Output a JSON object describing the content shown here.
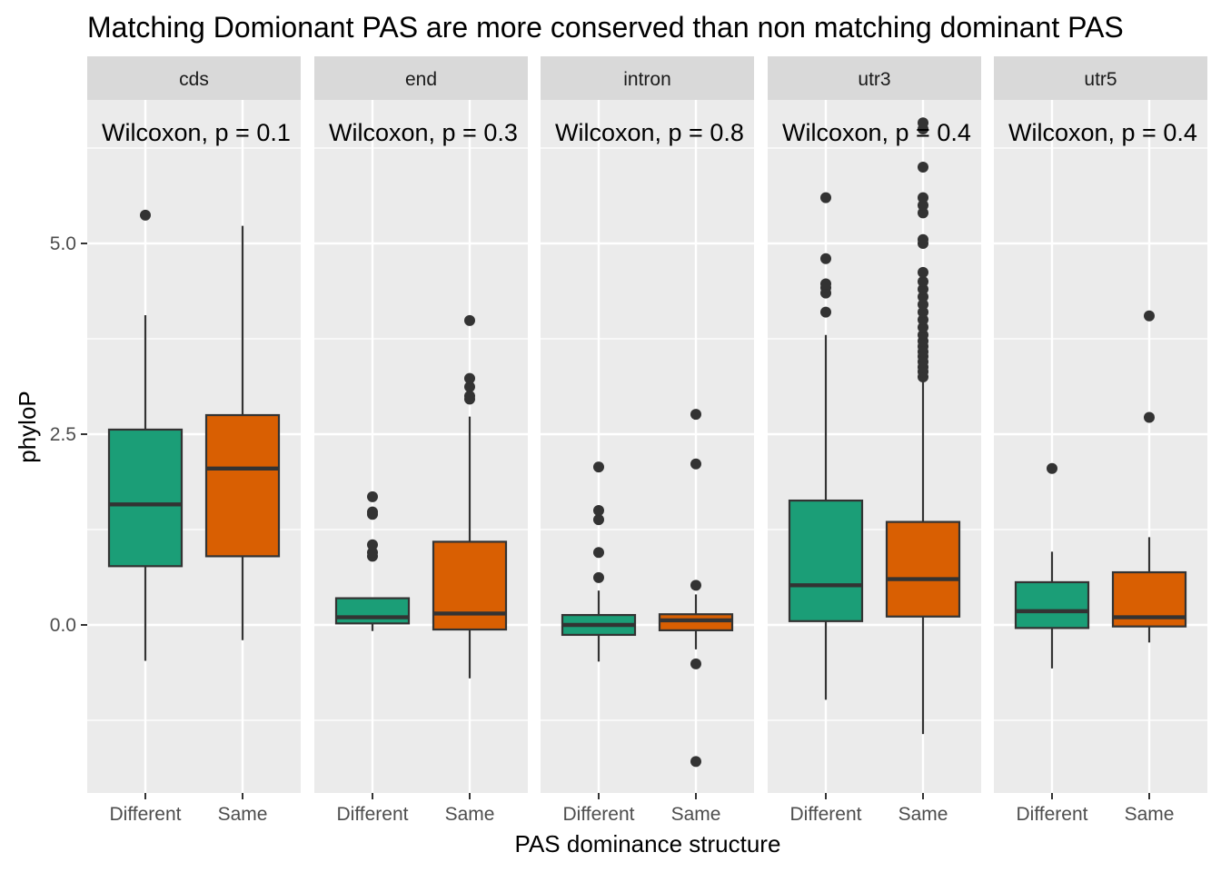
{
  "chart_data": {
    "type": "box",
    "title": "Matching Domionant PAS are more conserved than non matching dominant PAS",
    "xlabel": "PAS dominance structure",
    "ylabel": "phyloP",
    "y_ticks": [
      {
        "value": 0,
        "label": "0.0"
      },
      {
        "value": 2.5,
        "label": "2.5"
      },
      {
        "value": 5,
        "label": "5.0"
      }
    ],
    "ylim": [
      -2.2,
      6.75
    ],
    "grid": true,
    "legend": "none",
    "categories": [
      "Different",
      "Same"
    ],
    "colors": {
      "Different": "#1b9e77",
      "Same": "#d95f02"
    },
    "panels": [
      {
        "name": "cds",
        "annotation": "Wilcoxon, p = 0.1",
        "boxes": [
          {
            "group": "Different",
            "lower_whisker": -0.47,
            "q1": 0.77,
            "median": 1.58,
            "q3": 2.56,
            "upper_whisker": 4.06,
            "outliers": [
              5.37
            ]
          },
          {
            "group": "Same",
            "lower_whisker": -0.2,
            "q1": 0.9,
            "median": 2.05,
            "q3": 2.75,
            "upper_whisker": 5.23,
            "outliers": []
          }
        ]
      },
      {
        "name": "end",
        "annotation": "Wilcoxon, p = 0.3",
        "boxes": [
          {
            "group": "Different",
            "lower_whisker": -0.08,
            "q1": 0.02,
            "median": 0.1,
            "q3": 0.35,
            "upper_whisker": 0.35,
            "outliers": [
              0.9,
              0.95,
              1.05,
              1.45,
              1.48,
              1.68
            ]
          },
          {
            "group": "Same",
            "lower_whisker": -0.7,
            "q1": -0.06,
            "median": 0.15,
            "q3": 1.09,
            "upper_whisker": 2.73,
            "outliers": [
              2.96,
              3.0,
              3.12,
              3.23,
              3.99
            ]
          }
        ]
      },
      {
        "name": "intron",
        "annotation": "Wilcoxon, p = 0.8",
        "boxes": [
          {
            "group": "Different",
            "lower_whisker": -0.48,
            "q1": -0.13,
            "median": 0.0,
            "q3": 0.13,
            "upper_whisker": 0.45,
            "outliers": [
              0.62,
              0.95,
              1.38,
              1.5,
              2.07
            ]
          },
          {
            "group": "Same",
            "lower_whisker": -0.32,
            "q1": -0.07,
            "median": 0.06,
            "q3": 0.14,
            "upper_whisker": 0.4,
            "outliers": [
              0.52,
              2.11,
              2.76,
              -0.51,
              -1.79
            ]
          }
        ]
      },
      {
        "name": "utr3",
        "annotation": "Wilcoxon, p = 0.4",
        "boxes": [
          {
            "group": "Different",
            "lower_whisker": -0.98,
            "q1": 0.05,
            "median": 0.52,
            "q3": 1.63,
            "upper_whisker": 3.8,
            "outliers": [
              4.1,
              4.35,
              4.42,
              4.47,
              4.8,
              5.6
            ]
          },
          {
            "group": "Same",
            "lower_whisker": -1.43,
            "q1": 0.11,
            "median": 0.6,
            "q3": 1.35,
            "upper_whisker": 3.2,
            "outliers": [
              3.25,
              3.32,
              3.38,
              3.45,
              3.52,
              3.58,
              3.65,
              3.72,
              3.8,
              3.9,
              4.0,
              4.1,
              4.2,
              4.3,
              4.4,
              4.5,
              4.62,
              5.0,
              5.05,
              5.4,
              5.5,
              5.6,
              6.0,
              6.5,
              6.58
            ]
          }
        ]
      },
      {
        "name": "utr5",
        "annotation": "Wilcoxon, p = 0.4",
        "boxes": [
          {
            "group": "Different",
            "lower_whisker": -0.57,
            "q1": -0.04,
            "median": 0.18,
            "q3": 0.56,
            "upper_whisker": 0.96,
            "outliers": [
              2.05
            ]
          },
          {
            "group": "Same",
            "lower_whisker": -0.23,
            "q1": -0.02,
            "median": 0.1,
            "q3": 0.69,
            "upper_whisker": 1.15,
            "outliers": [
              2.72,
              4.05
            ]
          }
        ]
      }
    ]
  }
}
